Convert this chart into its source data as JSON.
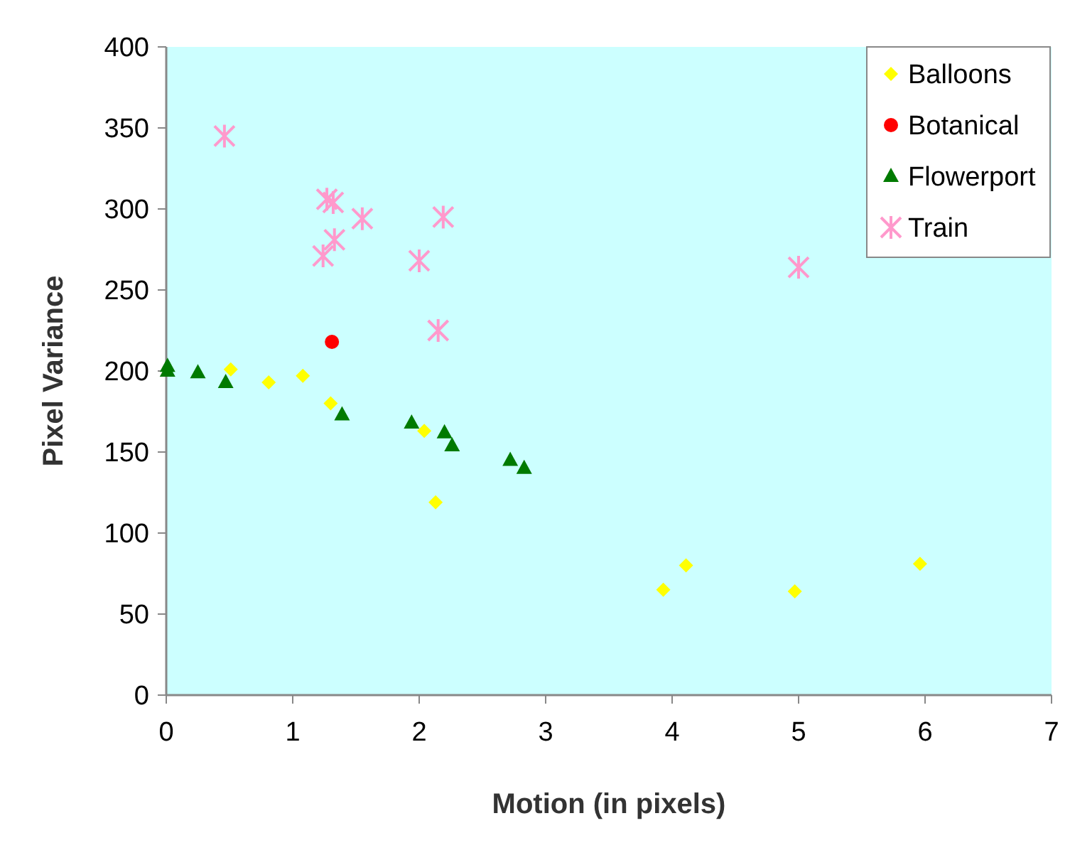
{
  "chart_data": {
    "type": "scatter",
    "xlabel": "Motion (in pixels)",
    "ylabel": "Pixel Variance",
    "xlim": [
      0,
      7
    ],
    "xticks": [
      0,
      1,
      2,
      3,
      4,
      5,
      6,
      7
    ],
    "ylim": [
      0,
      400
    ],
    "yticks": [
      0,
      50,
      100,
      150,
      200,
      250,
      300,
      350,
      400
    ],
    "grid": false,
    "legend": "top right",
    "series": [
      {
        "name": "Balloons",
        "color": "#ffff00",
        "marker": "diamond",
        "x": [
          0.51,
          0.81,
          1.08,
          1.3,
          2.04,
          2.13,
          3.93,
          4.11,
          4.97,
          5.96
        ],
        "values": [
          201,
          193,
          197,
          180,
          163,
          119,
          65,
          80,
          64,
          81
        ]
      },
      {
        "name": "Botanical",
        "color": "#ff0000",
        "marker": "circle",
        "x": [
          1.31
        ],
        "values": [
          218
        ]
      },
      {
        "name": "Flowerport",
        "color": "#007a00",
        "marker": "triangle",
        "x": [
          0.01,
          0.01,
          0.25,
          0.47,
          1.39,
          1.94,
          2.2,
          2.26,
          2.72,
          2.83
        ],
        "values": [
          203,
          200,
          199,
          193,
          173,
          168,
          162,
          154,
          145,
          140
        ]
      },
      {
        "name": "Train",
        "color": "#ff99cc",
        "marker": "cross",
        "x": [
          0.46,
          1.27,
          1.32,
          1.55,
          1.33,
          1.24,
          2.0,
          2.19,
          2.15,
          5.0
        ],
        "values": [
          345,
          306,
          304,
          294,
          281,
          271,
          268,
          295,
          225,
          264
        ]
      }
    ]
  }
}
